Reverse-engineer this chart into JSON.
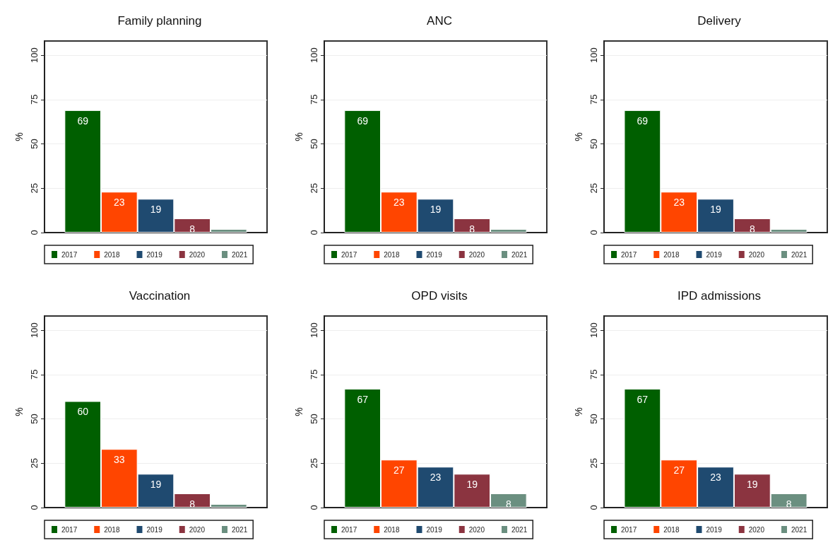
{
  "chart_data": [
    {
      "type": "bar",
      "title": "Family planning",
      "ylabel": "%",
      "categories": [
        null
      ],
      "ylim": [
        0,
        108
      ],
      "yticks": [
        0,
        25,
        50,
        75,
        100
      ],
      "grid": "y",
      "legend": "bottom",
      "series": [
        {
          "name": "2017",
          "color": "#005f00",
          "values": [
            69
          ],
          "value_labels": [
            "69"
          ]
        },
        {
          "name": "2018",
          "color": "#ff4500",
          "values": [
            23
          ],
          "value_labels": [
            "23"
          ]
        },
        {
          "name": "2019",
          "color": "#1f4a70",
          "values": [
            19
          ],
          "value_labels": [
            "19"
          ]
        },
        {
          "name": "2020",
          "color": "#8b3440",
          "values": [
            8
          ],
          "value_labels": [
            "8"
          ]
        },
        {
          "name": "2021",
          "color": "#6b8f80",
          "values": [
            2
          ],
          "value_labels": [
            null
          ]
        }
      ]
    },
    {
      "type": "bar",
      "title": "ANC",
      "ylabel": "%",
      "categories": [
        null
      ],
      "ylim": [
        0,
        108
      ],
      "yticks": [
        0,
        25,
        50,
        75,
        100
      ],
      "grid": "y",
      "legend": "bottom",
      "series": [
        {
          "name": "2017",
          "color": "#005f00",
          "values": [
            69
          ],
          "value_labels": [
            "69"
          ]
        },
        {
          "name": "2018",
          "color": "#ff4500",
          "values": [
            23
          ],
          "value_labels": [
            "23"
          ]
        },
        {
          "name": "2019",
          "color": "#1f4a70",
          "values": [
            19
          ],
          "value_labels": [
            "19"
          ]
        },
        {
          "name": "2020",
          "color": "#8b3440",
          "values": [
            8
          ],
          "value_labels": [
            "8"
          ]
        },
        {
          "name": "2021",
          "color": "#6b8f80",
          "values": [
            2
          ],
          "value_labels": [
            null
          ]
        }
      ]
    },
    {
      "type": "bar",
      "title": "Delivery",
      "ylabel": "%",
      "categories": [
        null
      ],
      "ylim": [
        0,
        108
      ],
      "yticks": [
        0,
        25,
        50,
        75,
        100
      ],
      "grid": "y",
      "legend": "bottom",
      "series": [
        {
          "name": "2017",
          "color": "#005f00",
          "values": [
            69
          ],
          "value_labels": [
            "69"
          ]
        },
        {
          "name": "2018",
          "color": "#ff4500",
          "values": [
            23
          ],
          "value_labels": [
            "23"
          ]
        },
        {
          "name": "2019",
          "color": "#1f4a70",
          "values": [
            19
          ],
          "value_labels": [
            "19"
          ]
        },
        {
          "name": "2020",
          "color": "#8b3440",
          "values": [
            8
          ],
          "value_labels": [
            "8"
          ]
        },
        {
          "name": "2021",
          "color": "#6b8f80",
          "values": [
            2
          ],
          "value_labels": [
            null
          ]
        }
      ]
    },
    {
      "type": "bar",
      "title": "Vaccination",
      "ylabel": "%",
      "categories": [
        null
      ],
      "ylim": [
        0,
        108
      ],
      "yticks": [
        0,
        25,
        50,
        75,
        100
      ],
      "grid": "y",
      "legend": "bottom",
      "series": [
        {
          "name": "2017",
          "color": "#005f00",
          "values": [
            60
          ],
          "value_labels": [
            "60"
          ]
        },
        {
          "name": "2018",
          "color": "#ff4500",
          "values": [
            33
          ],
          "value_labels": [
            "33"
          ]
        },
        {
          "name": "2019",
          "color": "#1f4a70",
          "values": [
            19
          ],
          "value_labels": [
            "19"
          ]
        },
        {
          "name": "2020",
          "color": "#8b3440",
          "values": [
            8
          ],
          "value_labels": [
            "8"
          ]
        },
        {
          "name": "2021",
          "color": "#6b8f80",
          "values": [
            2
          ],
          "value_labels": [
            null
          ]
        }
      ]
    },
    {
      "type": "bar",
      "title": "OPD visits",
      "ylabel": "%",
      "categories": [
        null
      ],
      "ylim": [
        0,
        108
      ],
      "yticks": [
        0,
        25,
        50,
        75,
        100
      ],
      "grid": "y",
      "legend": "bottom",
      "series": [
        {
          "name": "2017",
          "color": "#005f00",
          "values": [
            67
          ],
          "value_labels": [
            "67"
          ]
        },
        {
          "name": "2018",
          "color": "#ff4500",
          "values": [
            27
          ],
          "value_labels": [
            "27"
          ]
        },
        {
          "name": "2019",
          "color": "#1f4a70",
          "values": [
            23
          ],
          "value_labels": [
            "23"
          ]
        },
        {
          "name": "2020",
          "color": "#8b3440",
          "values": [
            19
          ],
          "value_labels": [
            "19"
          ]
        },
        {
          "name": "2021",
          "color": "#6b8f80",
          "values": [
            8
          ],
          "value_labels": [
            "8"
          ]
        }
      ]
    },
    {
      "type": "bar",
      "title": "IPD admissions",
      "ylabel": "%",
      "categories": [
        null
      ],
      "ylim": [
        0,
        108
      ],
      "yticks": [
        0,
        25,
        50,
        75,
        100
      ],
      "grid": "y",
      "legend": "bottom",
      "series": [
        {
          "name": "2017",
          "color": "#005f00",
          "values": [
            67
          ],
          "value_labels": [
            "67"
          ]
        },
        {
          "name": "2018",
          "color": "#ff4500",
          "values": [
            27
          ],
          "value_labels": [
            "27"
          ]
        },
        {
          "name": "2019",
          "color": "#1f4a70",
          "values": [
            23
          ],
          "value_labels": [
            "23"
          ]
        },
        {
          "name": "2020",
          "color": "#8b3440",
          "values": [
            19
          ],
          "value_labels": [
            "19"
          ]
        },
        {
          "name": "2021",
          "color": "#6b8f80",
          "values": [
            8
          ],
          "value_labels": [
            "8"
          ]
        }
      ]
    }
  ]
}
